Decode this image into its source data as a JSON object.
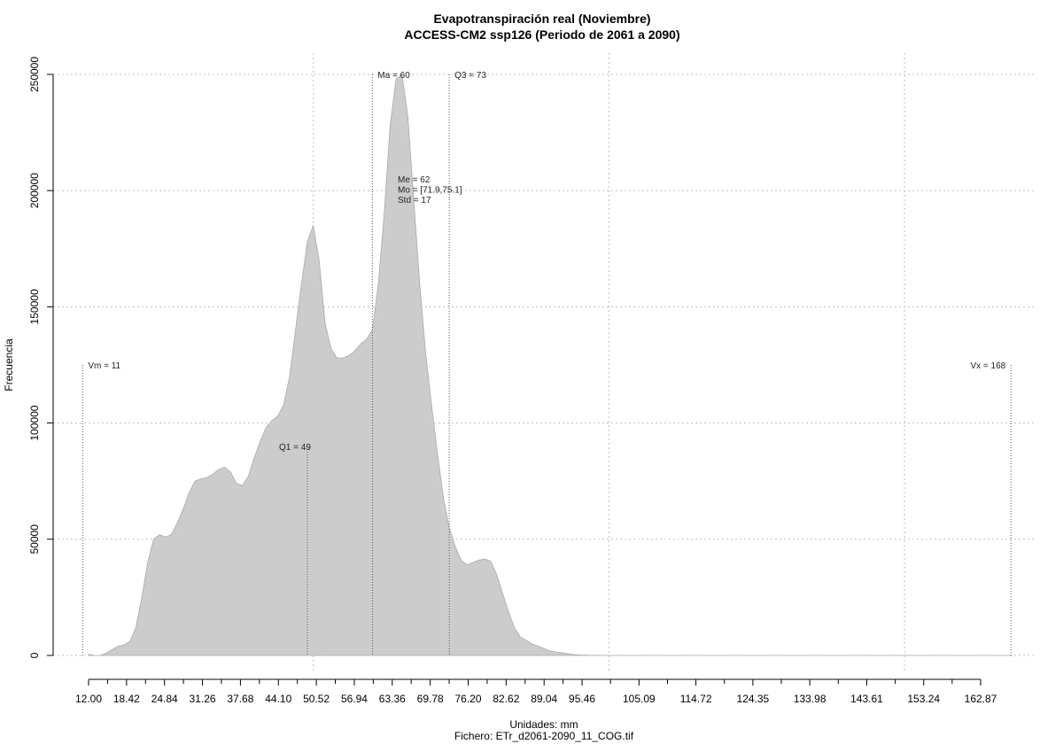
{
  "chart_data": {
    "type": "area",
    "title": "Evapotranspiración real (Noviembre)",
    "subtitle": "ACCESS-CM2 ssp126 (Periodo de 2061 a 2090)",
    "xlabel": "Unidades: mm",
    "ylabel": "Frecuencia",
    "footer": "Fichero: ETr_d2061-2090_11_COG.tif",
    "xlim": [
      10.5,
      168
    ],
    "ylim": [
      0,
      250000
    ],
    "grid": true,
    "fill_color": "#cccccc",
    "x_tick_values": [
      12.0,
      18.42,
      24.84,
      31.26,
      37.68,
      44.1,
      50.52,
      56.94,
      63.36,
      69.78,
      76.2,
      82.62,
      89.04,
      95.46,
      105.09,
      114.72,
      124.35,
      133.98,
      143.61,
      153.24,
      162.87
    ],
    "x_tick_labels": [
      "12.00",
      "18.42",
      "24.84",
      "31.26",
      "37.68",
      "44.10",
      "50.52",
      "56.94",
      "63.36",
      "69.78",
      "76.20",
      "82.62",
      "89.04",
      "95.46",
      "105.09",
      "114.72",
      "124.35",
      "133.98",
      "143.61",
      "153.24",
      "162.87"
    ],
    "y_tick_values": [
      0,
      50000,
      100000,
      150000,
      200000,
      250000
    ],
    "y_tick_labels": [
      "0",
      "50000",
      "100000",
      "150000",
      "200000",
      "250000"
    ],
    "x_grid_values": [
      50,
      100,
      150
    ],
    "x": [
      12,
      13,
      14,
      15,
      16,
      17,
      18,
      19,
      20,
      21,
      22,
      23,
      24,
      25,
      26,
      27,
      28,
      29,
      30,
      31,
      32,
      33,
      34,
      35,
      36,
      37,
      38,
      39,
      40,
      41,
      42,
      43,
      44,
      45,
      46,
      47,
      48,
      49,
      50,
      51,
      52,
      53,
      54,
      55,
      56,
      57,
      58,
      59,
      60,
      61,
      62,
      63,
      64,
      65,
      66,
      67,
      68,
      69,
      70,
      71,
      72,
      73,
      74,
      75,
      76,
      77,
      78,
      79,
      80,
      81,
      82,
      83,
      84,
      85,
      86,
      87,
      88,
      89,
      90,
      91,
      92,
      93,
      94,
      95,
      96,
      97,
      98,
      100,
      102,
      104,
      106,
      108,
      110,
      112,
      114,
      116,
      120,
      130,
      140,
      150,
      160,
      168
    ],
    "values": [
      500,
      0,
      0,
      1000,
      2500,
      4000,
      4500,
      6000,
      12000,
      25000,
      40000,
      50000,
      52000,
      51000,
      52000,
      57000,
      63000,
      70000,
      75000,
      76000,
      76500,
      78000,
      80000,
      81000,
      79000,
      74000,
      73000,
      77000,
      85000,
      92000,
      98000,
      101000,
      103000,
      108000,
      120000,
      140000,
      160000,
      178000,
      185000,
      170000,
      143000,
      132000,
      128000,
      128000,
      129000,
      131000,
      134000,
      136000,
      140000,
      160000,
      190000,
      228000,
      248000,
      250000,
      232000,
      196000,
      160000,
      130000,
      108000,
      87000,
      68000,
      55000,
      47000,
      41000,
      39000,
      40000,
      41000,
      41500,
      40500,
      35000,
      27000,
      19000,
      12000,
      8000,
      6500,
      5000,
      4000,
      3000,
      2000,
      1500,
      1200,
      800,
      400,
      200,
      100,
      50,
      20,
      0,
      0,
      0,
      0,
      0,
      0,
      0,
      0,
      0,
      0,
      0,
      0,
      0,
      0,
      0
    ],
    "vlines": [
      {
        "label": "Vm = 11",
        "x": 11,
        "y_end": 125000
      },
      {
        "label": "Q1 = 49",
        "x": 49,
        "y_end": 90000
      },
      {
        "label": "Ma = 60",
        "x": 60,
        "y_end": 250000
      },
      {
        "label": "Q3 = 73",
        "x": 73,
        "y_end": 250000
      },
      {
        "label": "Vx = 168",
        "x": 168,
        "y_end": 125000
      }
    ],
    "stats": [
      {
        "label": "Me = 62"
      },
      {
        "label": "Mo = [71.9,75.1]"
      },
      {
        "label": "Std = 17"
      }
    ]
  }
}
